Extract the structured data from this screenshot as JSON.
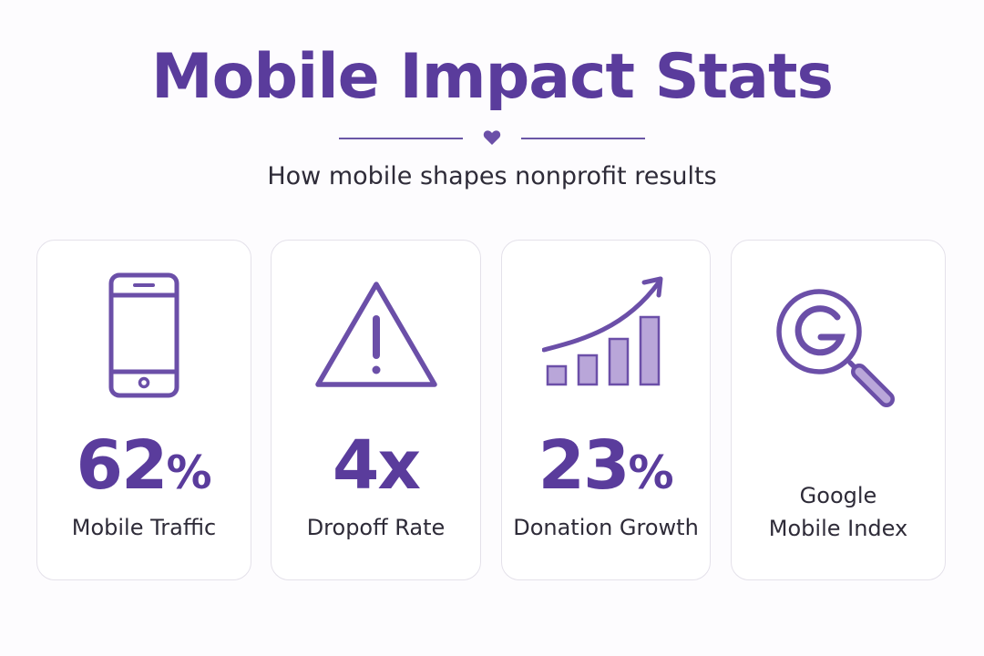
{
  "header": {
    "title": "Mobile Impact Stats",
    "subtitle": "How mobile shapes nonprofit results"
  },
  "colors": {
    "accent": "#5a3c9c",
    "icon_stroke": "#6b4fa8",
    "bar_fill": "#b9a6d9",
    "card_border": "#e4e1ea",
    "text": "#2e2b38",
    "background": "#fdfcfe"
  },
  "stats": [
    {
      "icon": "smartphone-icon",
      "value": "62",
      "unit": "%",
      "label": "Mobile Traffic"
    },
    {
      "icon": "warning-triangle-icon",
      "value": "4x",
      "unit": "",
      "label": "Dropoff Rate"
    },
    {
      "icon": "growth-chart-icon",
      "value": "23",
      "unit": "%",
      "label": "Donation Growth"
    },
    {
      "icon": "google-search-icon",
      "label_line1": "Google",
      "label_line2": "Mobile Index"
    }
  ]
}
